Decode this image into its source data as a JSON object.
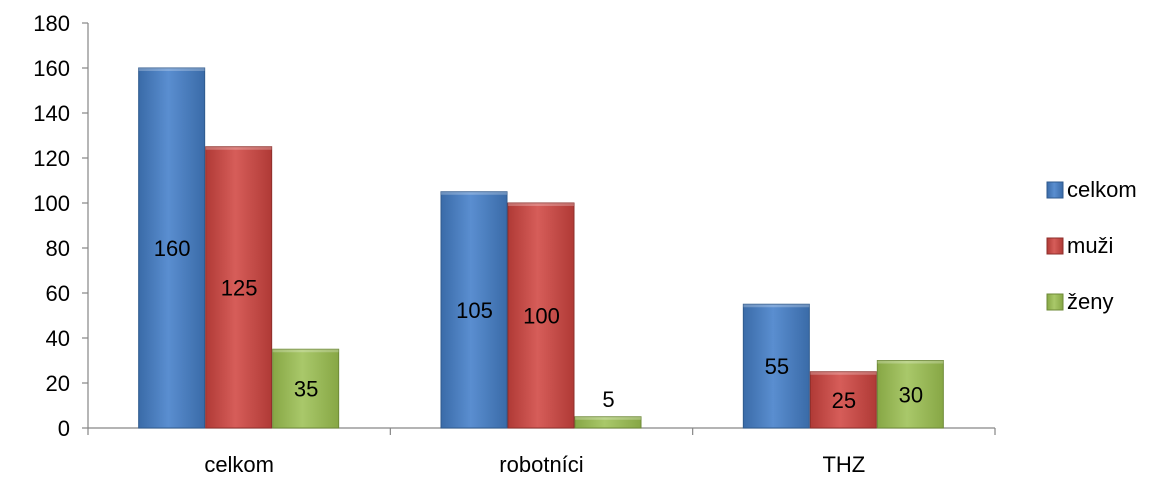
{
  "chart_data": {
    "type": "bar",
    "categories": [
      "celkom",
      "robotníci",
      "THZ"
    ],
    "series": [
      {
        "name": "celkom",
        "values": [
          160,
          105,
          55
        ],
        "color": "#4F81BD"
      },
      {
        "name": "muži",
        "values": [
          125,
          100,
          25
        ],
        "color": "#C0504D"
      },
      {
        "name": "ženy",
        "values": [
          35,
          5,
          30
        ],
        "color": "#9BBB59"
      }
    ],
    "ylim": [
      0,
      180
    ],
    "y_ticks": [
      0,
      20,
      40,
      60,
      80,
      100,
      120,
      140,
      160,
      180
    ],
    "y_tick_labels": [
      "0",
      "20",
      "40",
      "60",
      "80",
      "100",
      "120",
      "140",
      "160",
      "180"
    ],
    "data_labels": [
      [
        "160",
        "105",
        "55"
      ],
      [
        "125",
        "100",
        "25"
      ],
      [
        "35",
        "5",
        "30"
      ]
    ],
    "grid": false,
    "legend": "right"
  }
}
